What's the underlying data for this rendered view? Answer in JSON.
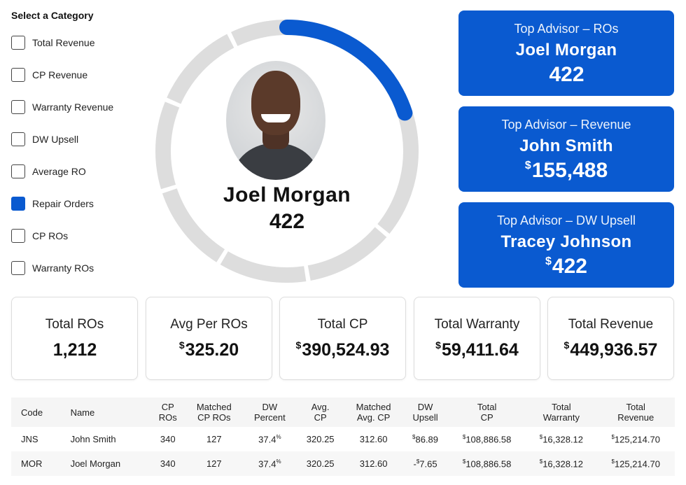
{
  "sidebar": {
    "title": "Select a Category",
    "items": [
      {
        "label": "Total Revenue",
        "checked": false
      },
      {
        "label": "CP Revenue",
        "checked": false
      },
      {
        "label": "Warranty Revenue",
        "checked": false
      },
      {
        "label": "DW Upsell",
        "checked": false
      },
      {
        "label": "Average RO",
        "checked": false
      },
      {
        "label": "Repair Orders",
        "checked": true
      },
      {
        "label": "CP ROs",
        "checked": false
      },
      {
        "label": "Warranty ROs",
        "checked": false
      }
    ]
  },
  "donut": {
    "name": "Joel Morgan",
    "value": "422",
    "progress_fraction": 0.2,
    "track_color": "#dddddd",
    "fill_color": "#0a5ad0"
  },
  "top_advisors": [
    {
      "title": "Top  Advisor – ROs",
      "name": "Joel Morgan",
      "currency": "",
      "value": "422"
    },
    {
      "title": "Top  Advisor – Revenue",
      "name": "John Smith",
      "currency": "$",
      "value": "155,488"
    },
    {
      "title": "Top  Advisor – DW Upsell",
      "name": "Tracey Johnson",
      "currency": "$",
      "value": "422"
    }
  ],
  "stats": [
    {
      "label": "Total ROs",
      "currency": "",
      "value": "1,212"
    },
    {
      "label": "Avg Per ROs",
      "currency": "$",
      "value": "325.20"
    },
    {
      "label": "Total CP",
      "currency": "$",
      "value": "390,524.93"
    },
    {
      "label": "Total Warranty",
      "currency": "$",
      "value": "59,411.64"
    },
    {
      "label": "Total Revenue",
      "currency": "$",
      "value": "449,936.57"
    }
  ],
  "table": {
    "headers": [
      [
        "Code"
      ],
      [
        "Name"
      ],
      [
        "CP",
        "ROs"
      ],
      [
        "Matched",
        "CP ROs"
      ],
      [
        "DW",
        "Percent"
      ],
      [
        "Avg.",
        "CP"
      ],
      [
        "Matched",
        "Avg. CP"
      ],
      [
        "DW",
        "Upsell"
      ],
      [
        "Total",
        "CP"
      ],
      [
        "Total",
        "Warranty"
      ],
      [
        "Total",
        "Revenue"
      ]
    ],
    "rows": [
      {
        "code": "JNS",
        "name": "John Smith",
        "cp_ros": "340",
        "matched_cp_ros": "127",
        "dw_percent": "37.4",
        "avg_cp": "320.25",
        "matched_avg_cp": "312.60",
        "dw_upsell": "86.89",
        "dw_upsell_negative": false,
        "total_cp": "108,886.58",
        "total_warranty": "16,328.12",
        "total_revenue": "125,214.70"
      },
      {
        "code": "MOR",
        "name": "Joel Morgan",
        "cp_ros": "340",
        "matched_cp_ros": "127",
        "dw_percent": "37.4",
        "avg_cp": "320.25",
        "matched_avg_cp": "312.60",
        "dw_upsell": "7.65",
        "dw_upsell_negative": true,
        "total_cp": "108,886.58",
        "total_warranty": "16,328.12",
        "total_revenue": "125,214.70"
      }
    ]
  },
  "symbols": {
    "currency": "$",
    "percent": "%",
    "minus": "-"
  }
}
